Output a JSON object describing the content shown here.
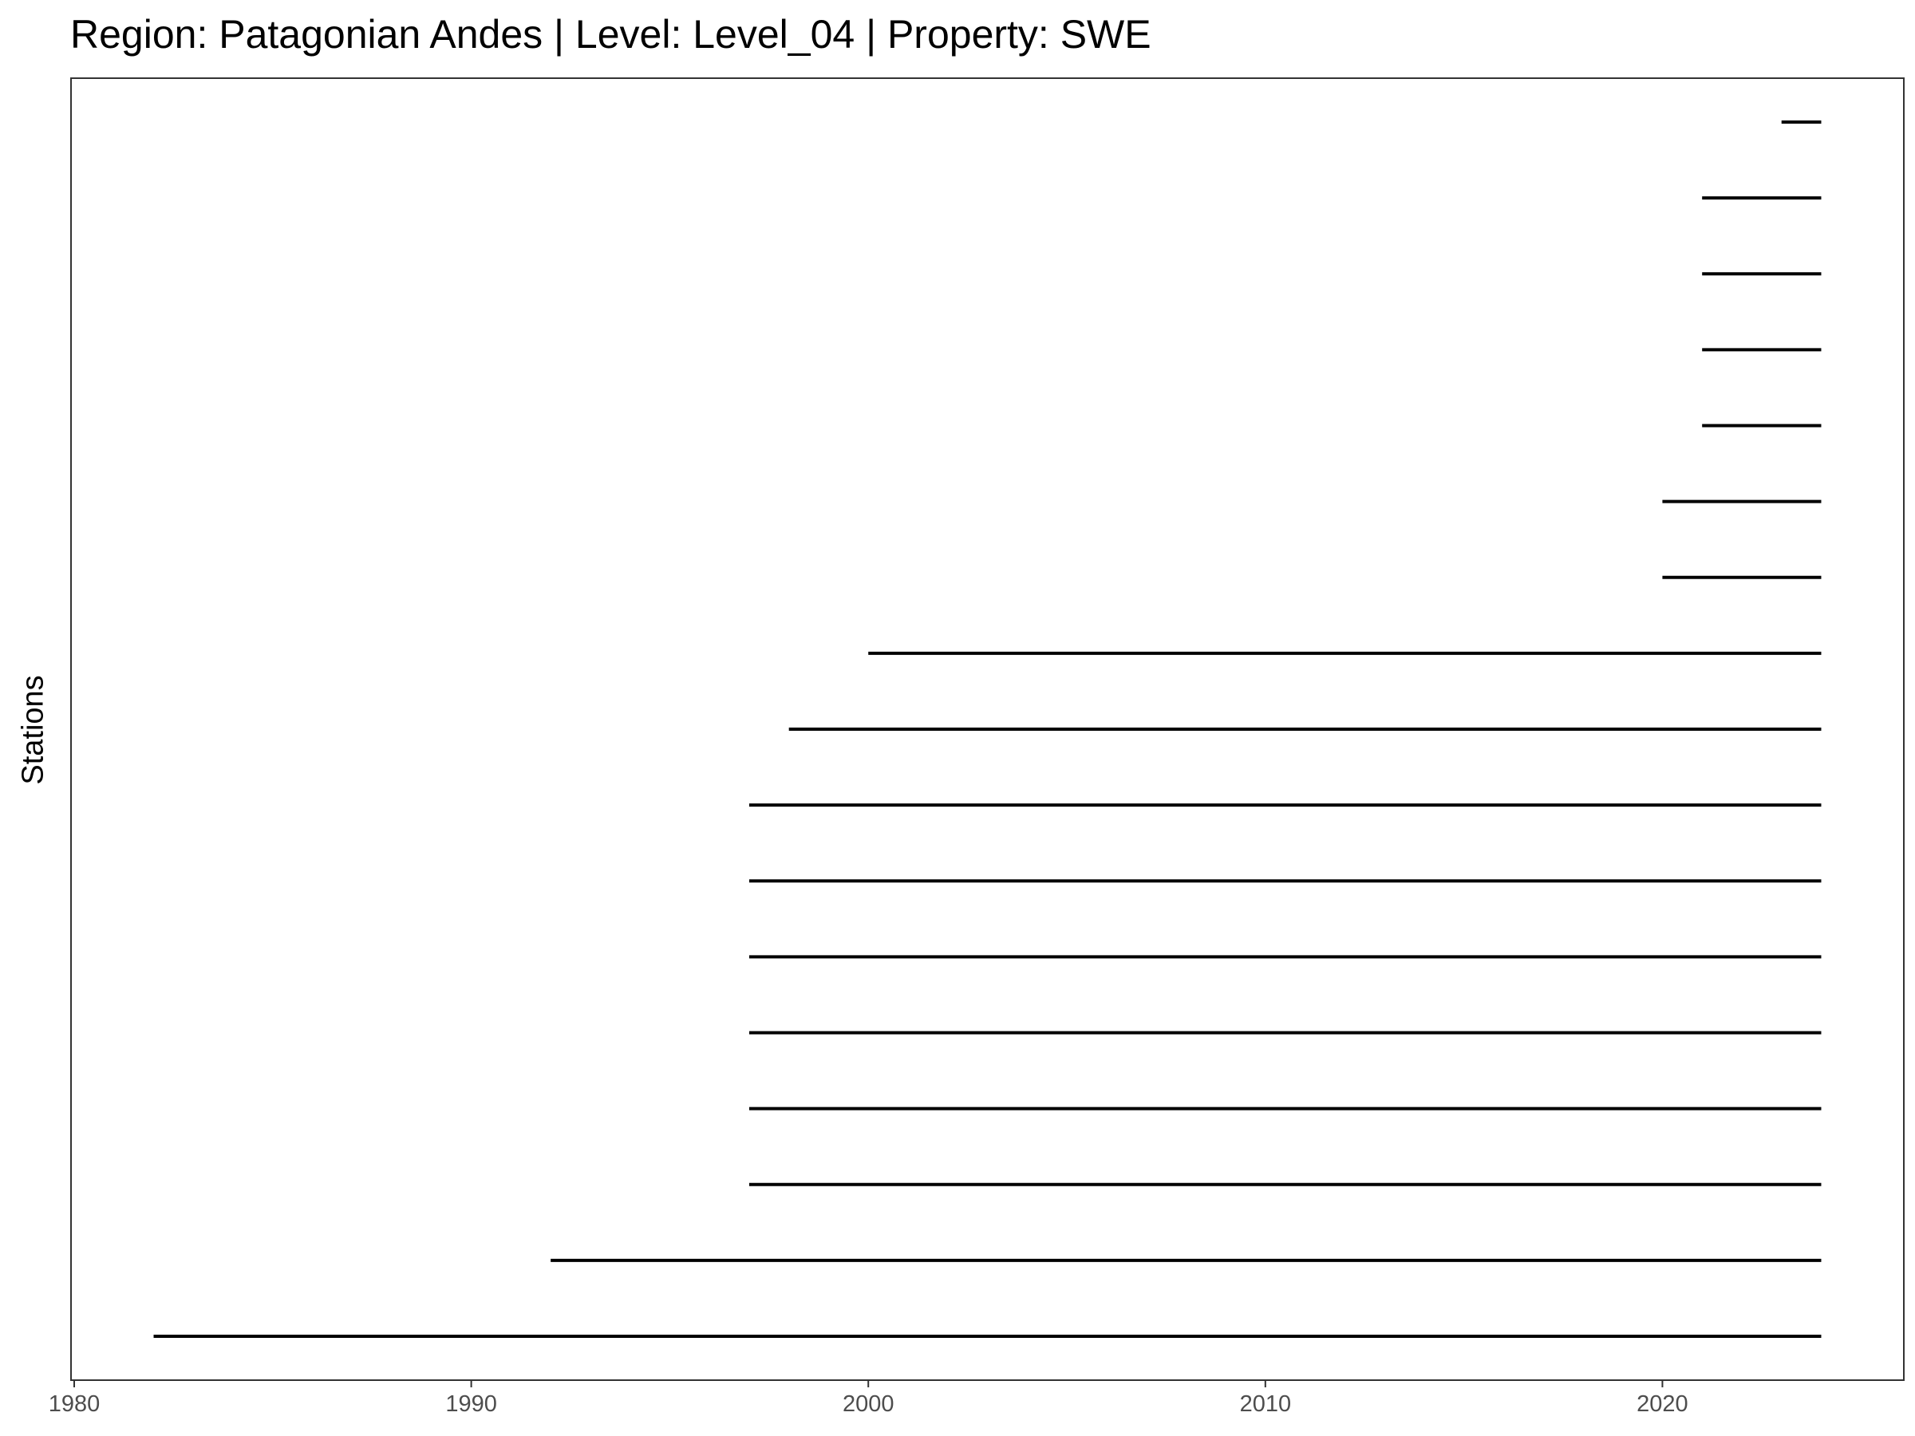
{
  "chart_data": {
    "type": "gantt",
    "title": "Region: Patagonian Andes | Level: Level_04 | Property: SWE",
    "xlabel": "",
    "ylabel": "Stations",
    "xlim": [
      1980,
      2026
    ],
    "x_ticks": [
      1980,
      1990,
      2000,
      2010,
      2020
    ],
    "grid": false,
    "line_color": "#000000",
    "segments": [
      {
        "start": 1982.0,
        "end": 2024.0
      },
      {
        "start": 1992.0,
        "end": 2024.0
      },
      {
        "start": 1997.0,
        "end": 2024.0
      },
      {
        "start": 1997.0,
        "end": 2024.0
      },
      {
        "start": 1997.0,
        "end": 2024.0
      },
      {
        "start": 1997.0,
        "end": 2024.0
      },
      {
        "start": 1997.0,
        "end": 2024.0
      },
      {
        "start": 1997.0,
        "end": 2024.0
      },
      {
        "start": 1998.0,
        "end": 2024.0
      },
      {
        "start": 2000.0,
        "end": 2024.0
      },
      {
        "start": 2020.0,
        "end": 2024.0
      },
      {
        "start": 2020.0,
        "end": 2024.0
      },
      {
        "start": 2021.0,
        "end": 2024.0
      },
      {
        "start": 2021.0,
        "end": 2024.0
      },
      {
        "start": 2021.0,
        "end": 2024.0
      },
      {
        "start": 2021.0,
        "end": 2024.0
      },
      {
        "start": 2023.0,
        "end": 2024.0
      }
    ]
  }
}
